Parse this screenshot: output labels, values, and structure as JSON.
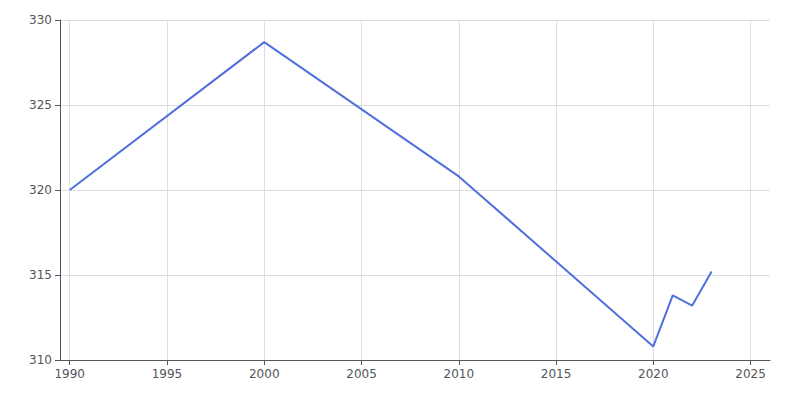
{
  "chart_data": {
    "type": "line",
    "x": [
      1990,
      2000,
      2010,
      2020,
      2021,
      2022,
      2023
    ],
    "values": [
      320.0,
      328.7,
      320.8,
      310.8,
      313.8,
      313.2,
      315.2
    ],
    "xlim": [
      1989.5,
      2026
    ],
    "xticks": [
      1990,
      1995,
      2000,
      2005,
      2010,
      2015,
      2020,
      2025
    ],
    "ylim": [
      310,
      330
    ],
    "yticks": [
      310,
      315,
      320,
      325,
      330
    ],
    "grid": true
  }
}
